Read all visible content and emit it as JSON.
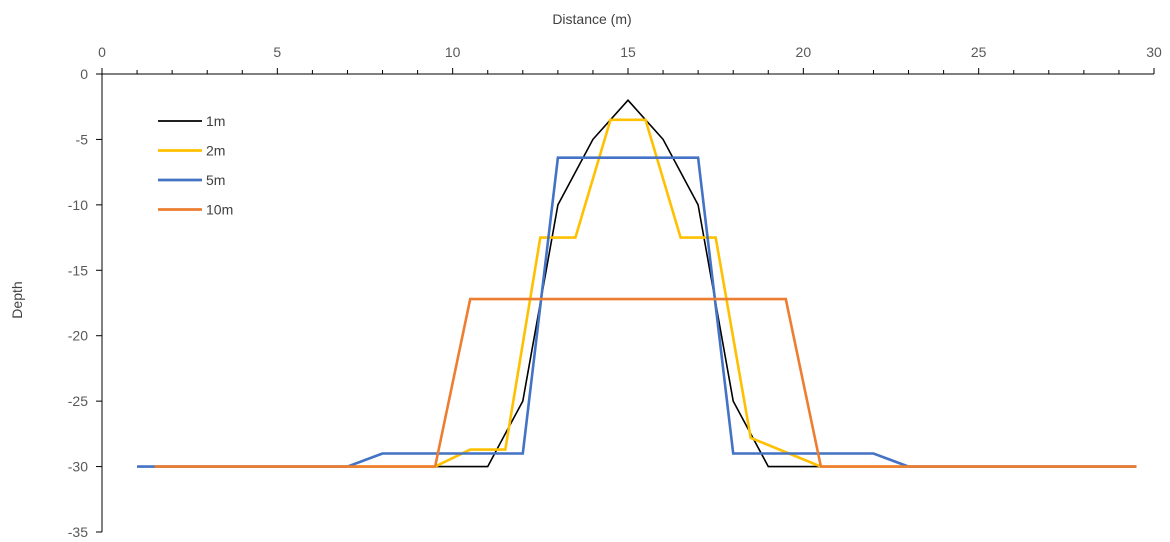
{
  "chart_data": {
    "type": "line",
    "title": "",
    "xlabel": "Distance (m)",
    "ylabel": "Depth",
    "xlim": [
      0,
      30
    ],
    "ylim": [
      -35,
      0
    ],
    "x_ticks": [
      0,
      5,
      10,
      15,
      20,
      25,
      30
    ],
    "y_ticks": [
      0,
      -5,
      -10,
      -15,
      -20,
      -25,
      -30,
      -35
    ],
    "x_axis_position": "top",
    "grid": false,
    "legend_position": "top-left",
    "series": [
      {
        "name": "1m",
        "color": "#000000",
        "points": [
          [
            1,
            -30
          ],
          [
            2,
            -30
          ],
          [
            3,
            -30
          ],
          [
            4,
            -30
          ],
          [
            5,
            -30
          ],
          [
            6,
            -30
          ],
          [
            7,
            -30
          ],
          [
            8,
            -30
          ],
          [
            9,
            -30
          ],
          [
            10,
            -30
          ],
          [
            11,
            -30
          ],
          [
            12,
            -25
          ],
          [
            13,
            -10
          ],
          [
            14,
            -5
          ],
          [
            15,
            -2
          ],
          [
            16,
            -5
          ],
          [
            17,
            -10
          ],
          [
            18,
            -25
          ],
          [
            19,
            -30
          ],
          [
            20,
            -30
          ],
          [
            21,
            -30
          ],
          [
            22,
            -30
          ],
          [
            23,
            -30
          ],
          [
            24,
            -30
          ],
          [
            25,
            -30
          ],
          [
            26,
            -30
          ],
          [
            27,
            -30
          ],
          [
            28,
            -30
          ],
          [
            29,
            -30
          ],
          [
            29.5,
            -30
          ]
        ]
      },
      {
        "name": "2m",
        "color": "#FFC000",
        "points": [
          [
            1.5,
            -30
          ],
          [
            9.5,
            -30
          ],
          [
            10.5,
            -28.7
          ],
          [
            11.5,
            -28.7
          ],
          [
            12.5,
            -12.5
          ],
          [
            13.5,
            -12.5
          ],
          [
            14.5,
            -3.5
          ],
          [
            15.5,
            -3.5
          ],
          [
            16.5,
            -12.5
          ],
          [
            17.5,
            -12.5
          ],
          [
            18.5,
            -27.8
          ],
          [
            20.5,
            -30
          ],
          [
            29.5,
            -30
          ]
        ]
      },
      {
        "name": "5m",
        "color": "#4472C4",
        "points": [
          [
            1,
            -30
          ],
          [
            7,
            -30
          ],
          [
            8,
            -29
          ],
          [
            12,
            -29
          ],
          [
            13,
            -6.4
          ],
          [
            17,
            -6.4
          ],
          [
            18,
            -29
          ],
          [
            22,
            -29
          ],
          [
            23,
            -30
          ],
          [
            29.5,
            -30
          ]
        ]
      },
      {
        "name": "10m",
        "color": "#ED7D31",
        "points": [
          [
            1.5,
            -30
          ],
          [
            9.5,
            -30
          ],
          [
            10.5,
            -17.2
          ],
          [
            19.5,
            -17.2
          ],
          [
            20.5,
            -30
          ],
          [
            29.5,
            -30
          ]
        ]
      }
    ]
  }
}
